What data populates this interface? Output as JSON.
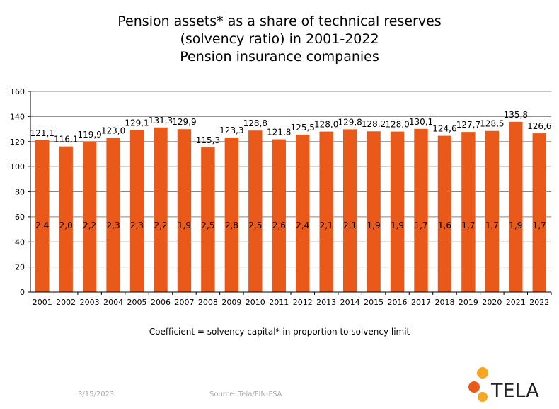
{
  "title": {
    "line1": "Pension assets* as a share of technical reserves",
    "line2": "(solvency ratio) in 2001-2022",
    "line3": "Pension insurance companies"
  },
  "footnote": "Coefficient = solvency capital* in proportion to solvency limit",
  "footer": {
    "date": "3/15/2023",
    "source": "Source: Tela/FIN-FSA"
  },
  "logo": {
    "text": "TELA",
    "colors": [
      "#f5a623",
      "#e8591a"
    ]
  },
  "colors": {
    "bar": "#e8591a",
    "grid": "#888888",
    "axis": "#000000"
  },
  "chart_data": {
    "type": "bar",
    "categories": [
      "2001",
      "2002",
      "2003",
      "2004",
      "2005",
      "2006",
      "2007",
      "2008",
      "2009",
      "2010",
      "2011",
      "2012",
      "2013",
      "2014",
      "2015",
      "2016",
      "2017",
      "2018",
      "2019",
      "2020",
      "2021",
      "2022"
    ],
    "values": [
      121.1,
      116.1,
      119.9,
      123.0,
      129.1,
      131.3,
      129.9,
      115.3,
      123.3,
      128.8,
      121.8,
      125.5,
      128.0,
      129.8,
      128.2,
      128.0,
      130.1,
      124.6,
      127.7,
      128.5,
      135.8,
      126.6
    ],
    "value_labels": [
      "121,1",
      "116,1",
      "119,9",
      "123,0",
      "129,1",
      "131,3",
      "129,9",
      "115,3",
      "123,3",
      "128,8",
      "121,8",
      "125,5",
      "128,0",
      "129,8",
      "128,2",
      "128,0",
      "130,1",
      "124,6",
      "127,7",
      "128,5",
      "135,8",
      "126,6"
    ],
    "coefficients": [
      "2,4",
      "2,0",
      "2,2",
      "2,3",
      "2,3",
      "2,2",
      "1,9",
      "2,5",
      "2,8",
      "2,5",
      "2,6",
      "2,4",
      "2,1",
      "2,1",
      "1,9",
      "1,9",
      "1,7",
      "1,6",
      "1,7",
      "1,7",
      "1,9",
      "1,7"
    ],
    "ylim": [
      0,
      160
    ],
    "yticks": [
      0,
      20,
      40,
      60,
      80,
      100,
      120,
      140,
      160
    ],
    "grid": true,
    "xlabel": "",
    "ylabel": ""
  }
}
